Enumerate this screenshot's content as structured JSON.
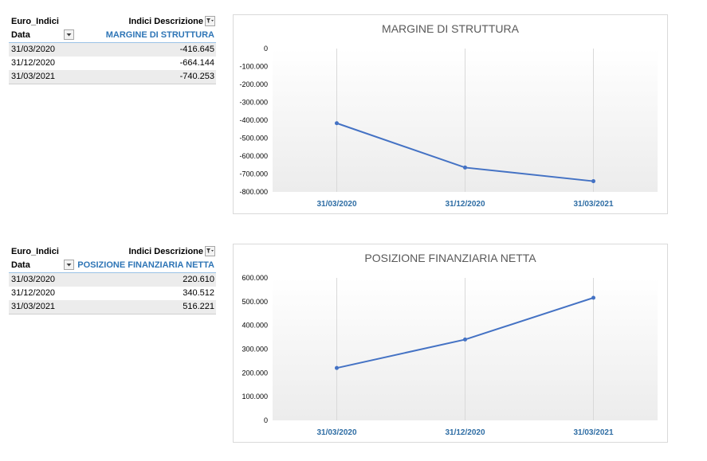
{
  "pivot_tables": [
    {
      "field_label": "Euro_Indici",
      "column_field": "Indici Descrizione",
      "row_field": "Data",
      "measure": "MARGINE DI STRUTTURA",
      "rows": [
        {
          "date": "31/03/2020",
          "value": "-416.645"
        },
        {
          "date": "31/12/2020",
          "value": "-664.144"
        },
        {
          "date": "31/03/2021",
          "value": "-740.253"
        }
      ]
    },
    {
      "field_label": "Euro_Indici",
      "column_field": "Indici Descrizione",
      "row_field": "Data",
      "measure": "POSIZIONE FINANZIARIA NETTA",
      "rows": [
        {
          "date": "31/03/2020",
          "value": "220.610"
        },
        {
          "date": "31/12/2020",
          "value": "340.512"
        },
        {
          "date": "31/03/2021",
          "value": "516.221"
        }
      ]
    }
  ],
  "chart_data": [
    {
      "type": "line",
      "title": "MARGINE DI STRUTTURA",
      "categories": [
        "31/03/2020",
        "31/12/2020",
        "31/03/2021"
      ],
      "series": [
        {
          "values": [
            -416645,
            -664144,
            -740253
          ]
        }
      ],
      "ylim": [
        -800000,
        0
      ],
      "yticks": [
        0,
        -100000,
        -200000,
        -300000,
        -400000,
        -500000,
        -600000,
        -700000,
        -800000
      ],
      "ytick_labels": [
        "0",
        "-100.000",
        "-200.000",
        "-300.000",
        "-400.000",
        "-500.000",
        "-600.000",
        "-700.000",
        "-800.000"
      ],
      "line_color": "#4472c4",
      "grid": "vertical"
    },
    {
      "type": "line",
      "title": "POSIZIONE FINANZIARIA NETTA",
      "categories": [
        "31/03/2020",
        "31/12/2020",
        "31/03/2021"
      ],
      "series": [
        {
          "values": [
            220610,
            340512,
            516221
          ]
        }
      ],
      "ylim": [
        0,
        600000
      ],
      "yticks": [
        600000,
        500000,
        400000,
        300000,
        200000,
        100000,
        0
      ],
      "ytick_labels": [
        "600.000",
        "500.000",
        "400.000",
        "300.000",
        "200.000",
        "100.000",
        "0"
      ],
      "line_color": "#4472c4",
      "grid": "vertical"
    }
  ]
}
